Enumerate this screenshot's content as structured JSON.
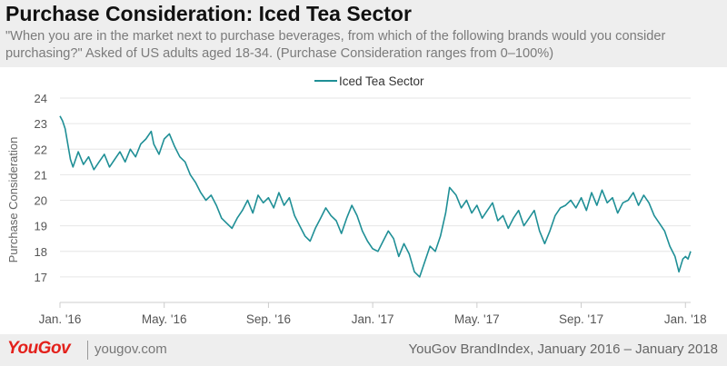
{
  "header": {
    "title": "Purchase Consideration: Iced Tea Sector",
    "subtitle": "\"When you are in the market next to purchase beverages, from which of the following brands would you consider purchasing?\" Asked of US adults aged 18-34. (Purchase Consideration ranges from 0–100%)"
  },
  "footer": {
    "logo": "YouGov",
    "site": "yougov.com",
    "source": "YouGov BrandIndex, January 2016 – January 2018"
  },
  "colors": {
    "series": "#1f8f96",
    "header_bg": "#eeeeee",
    "logo": "#e3201b"
  },
  "chart_data": {
    "type": "line",
    "title": "Purchase Consideration: Iced Tea Sector",
    "ylabel": "Purchase Consideration",
    "xlabel": "",
    "ylim": [
      16,
      24
    ],
    "yticks": [
      17,
      18,
      19,
      20,
      21,
      22,
      23,
      24
    ],
    "xticks": [
      "Jan. '16",
      "May. '16",
      "Sep. '16",
      "Jan. '17",
      "May. '17",
      "Sep. '17",
      "Jan. '18"
    ],
    "legend": {
      "position": "top-center",
      "entries": [
        "Iced Tea Sector"
      ]
    },
    "grid": {
      "horizontal": true,
      "vertical": false
    },
    "x_unit": "months since Jan. 2016",
    "series": [
      {
        "name": "Iced Tea Sector",
        "points": [
          [
            0.0,
            23.3
          ],
          [
            0.1,
            23.1
          ],
          [
            0.2,
            22.8
          ],
          [
            0.3,
            22.2
          ],
          [
            0.4,
            21.6
          ],
          [
            0.5,
            21.3
          ],
          [
            0.7,
            21.9
          ],
          [
            0.9,
            21.4
          ],
          [
            1.1,
            21.7
          ],
          [
            1.3,
            21.2
          ],
          [
            1.5,
            21.5
          ],
          [
            1.7,
            21.8
          ],
          [
            1.9,
            21.3
          ],
          [
            2.1,
            21.6
          ],
          [
            2.3,
            21.9
          ],
          [
            2.5,
            21.5
          ],
          [
            2.7,
            22.0
          ],
          [
            2.9,
            21.7
          ],
          [
            3.1,
            22.2
          ],
          [
            3.3,
            22.4
          ],
          [
            3.5,
            22.7
          ],
          [
            3.6,
            22.2
          ],
          [
            3.8,
            21.8
          ],
          [
            4.0,
            22.4
          ],
          [
            4.2,
            22.6
          ],
          [
            4.4,
            22.1
          ],
          [
            4.6,
            21.7
          ],
          [
            4.8,
            21.5
          ],
          [
            5.0,
            21.0
          ],
          [
            5.2,
            20.7
          ],
          [
            5.4,
            20.3
          ],
          [
            5.6,
            20.0
          ],
          [
            5.8,
            20.2
          ],
          [
            6.0,
            19.8
          ],
          [
            6.2,
            19.3
          ],
          [
            6.4,
            19.1
          ],
          [
            6.6,
            18.9
          ],
          [
            6.8,
            19.3
          ],
          [
            7.0,
            19.6
          ],
          [
            7.2,
            20.0
          ],
          [
            7.4,
            19.5
          ],
          [
            7.6,
            20.2
          ],
          [
            7.8,
            19.9
          ],
          [
            8.0,
            20.1
          ],
          [
            8.2,
            19.7
          ],
          [
            8.4,
            20.3
          ],
          [
            8.6,
            19.8
          ],
          [
            8.8,
            20.1
          ],
          [
            9.0,
            19.4
          ],
          [
            9.2,
            19.0
          ],
          [
            9.4,
            18.6
          ],
          [
            9.6,
            18.4
          ],
          [
            9.8,
            18.9
          ],
          [
            10.0,
            19.3
          ],
          [
            10.2,
            19.7
          ],
          [
            10.4,
            19.4
          ],
          [
            10.6,
            19.2
          ],
          [
            10.8,
            18.7
          ],
          [
            11.0,
            19.3
          ],
          [
            11.2,
            19.8
          ],
          [
            11.4,
            19.4
          ],
          [
            11.6,
            18.8
          ],
          [
            11.8,
            18.4
          ],
          [
            12.0,
            18.1
          ],
          [
            12.2,
            18.0
          ],
          [
            12.4,
            18.4
          ],
          [
            12.6,
            18.8
          ],
          [
            12.8,
            18.5
          ],
          [
            13.0,
            17.8
          ],
          [
            13.2,
            18.3
          ],
          [
            13.4,
            17.9
          ],
          [
            13.6,
            17.2
          ],
          [
            13.8,
            17.0
          ],
          [
            14.0,
            17.6
          ],
          [
            14.2,
            18.2
          ],
          [
            14.4,
            18.0
          ],
          [
            14.6,
            18.6
          ],
          [
            14.8,
            19.5
          ],
          [
            14.95,
            20.5
          ],
          [
            15.2,
            20.2
          ],
          [
            15.4,
            19.7
          ],
          [
            15.6,
            20.0
          ],
          [
            15.8,
            19.5
          ],
          [
            16.0,
            19.8
          ],
          [
            16.2,
            19.3
          ],
          [
            16.4,
            19.6
          ],
          [
            16.6,
            19.9
          ],
          [
            16.8,
            19.2
          ],
          [
            17.0,
            19.4
          ],
          [
            17.2,
            18.9
          ],
          [
            17.4,
            19.3
          ],
          [
            17.6,
            19.6
          ],
          [
            17.8,
            19.0
          ],
          [
            18.0,
            19.3
          ],
          [
            18.2,
            19.6
          ],
          [
            18.4,
            18.8
          ],
          [
            18.6,
            18.3
          ],
          [
            18.8,
            18.8
          ],
          [
            19.0,
            19.4
          ],
          [
            19.2,
            19.7
          ],
          [
            19.4,
            19.8
          ],
          [
            19.6,
            20.0
          ],
          [
            19.8,
            19.7
          ],
          [
            20.0,
            20.1
          ],
          [
            20.2,
            19.6
          ],
          [
            20.4,
            20.3
          ],
          [
            20.6,
            19.8
          ],
          [
            20.8,
            20.4
          ],
          [
            21.0,
            19.9
          ],
          [
            21.2,
            20.1
          ],
          [
            21.4,
            19.5
          ],
          [
            21.6,
            19.9
          ],
          [
            21.8,
            20.0
          ],
          [
            22.0,
            20.3
          ],
          [
            22.2,
            19.8
          ],
          [
            22.4,
            20.2
          ],
          [
            22.6,
            19.9
          ],
          [
            22.8,
            19.4
          ],
          [
            23.0,
            19.1
          ],
          [
            23.2,
            18.8
          ],
          [
            23.4,
            18.2
          ],
          [
            23.6,
            17.8
          ],
          [
            23.75,
            17.2
          ],
          [
            23.9,
            17.7
          ],
          [
            24.0,
            17.8
          ],
          [
            24.1,
            17.7
          ],
          [
            24.2,
            18.0
          ]
        ]
      }
    ]
  }
}
